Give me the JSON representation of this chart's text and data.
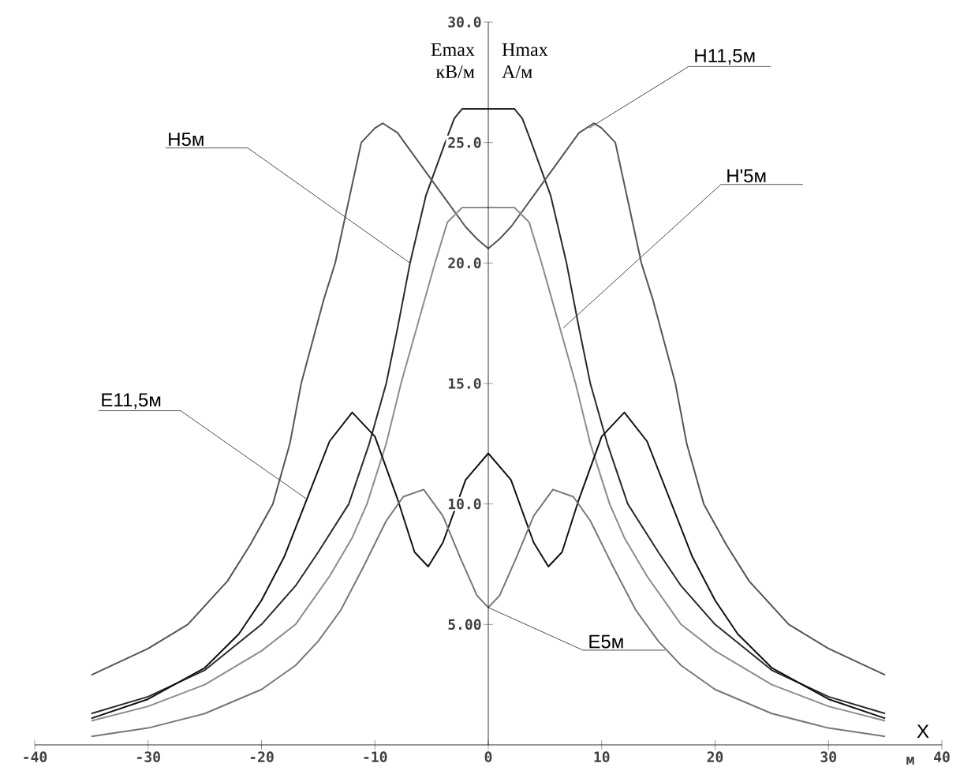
{
  "chart_data": {
    "type": "line",
    "ylabel": "Emax кВ/м",
    "y2label": "Hmax А/м",
    "xlabel": "X",
    "xlim": [
      -40,
      40
    ],
    "ylim": [
      0,
      30
    ],
    "xticks": [
      -40,
      -30,
      -20,
      -10,
      0,
      10,
      20,
      30,
      40
    ],
    "yticks": [
      {
        "value": 5,
        "label": "5.00"
      },
      {
        "value": 10,
        "label": "10.0"
      },
      {
        "value": 15,
        "label": "15.0"
      },
      {
        "value": 20,
        "label": "20.0"
      },
      {
        "value": 25,
        "label": "25.0"
      },
      {
        "value": 30,
        "label": "30.0"
      }
    ],
    "grid": false,
    "marker": "none",
    "line_style": "solid",
    "series": [
      {
        "color": "#2a2a2a",
        "x": [
          -35,
          -30,
          -25,
          -20,
          -17,
          -15,
          -12.3,
          -10.5,
          -9,
          -8,
          -6.9,
          -5.5,
          -3.8,
          -3,
          -2.3,
          0,
          2.3,
          3,
          3.8,
          5.5,
          6.9,
          8,
          9,
          10.5,
          12.3,
          15,
          17,
          20,
          25,
          30,
          35
        ],
        "values": [
          1.3,
          2.0,
          3.1,
          5.0,
          6.6,
          8.0,
          10,
          12.5,
          15,
          17.3,
          20,
          22.8,
          25,
          26,
          26.4,
          26.4,
          26.4,
          26,
          25,
          22.8,
          20,
          17.3,
          15,
          12.5,
          10,
          8.0,
          6.6,
          5.0,
          3.1,
          2.0,
          1.3
        ]
      },
      {
        "color": "#555555",
        "x": [
          -35,
          -30,
          -26.5,
          -23,
          -21,
          -19,
          -17.5,
          -16.5,
          -14.5,
          -13.5,
          -11.2,
          -10,
          -9.3,
          -8,
          -6,
          -4,
          -2,
          -1,
          0,
          1,
          2,
          4,
          6,
          8,
          9.3,
          10,
          11.2,
          13.5,
          14.5,
          16.5,
          17.5,
          19,
          21,
          23,
          26.5,
          30,
          35
        ],
        "values": [
          2.9,
          4.0,
          5.0,
          6.8,
          8.3,
          10,
          12.5,
          15,
          18.5,
          20,
          25,
          25.6,
          25.8,
          25.4,
          24.1,
          22.8,
          21.5,
          21.0,
          20.6,
          21.0,
          21.5,
          22.8,
          24.1,
          25.4,
          25.8,
          25.6,
          25,
          20,
          18.5,
          15,
          12.5,
          10,
          8.3,
          6.8,
          5.0,
          4.0,
          2.9
        ]
      },
      {
        "color": "#8c8c8c",
        "x": [
          -35,
          -30,
          -25,
          -20,
          -17,
          -14,
          -12,
          -10.7,
          -9,
          -7.7,
          -6.2,
          -4.7,
          -3.6,
          -2.3,
          0,
          2.3,
          3.6,
          4.7,
          6.2,
          7.7,
          9,
          10.7,
          12,
          14,
          17,
          20,
          25,
          30,
          35
        ],
        "values": [
          1.0,
          1.6,
          2.5,
          3.9,
          5.0,
          7.0,
          8.6,
          10,
          12.5,
          15,
          17.5,
          20,
          21.7,
          22.3,
          22.3,
          22.3,
          21.7,
          20,
          17.5,
          15,
          12.5,
          10,
          8.6,
          7.0,
          5.0,
          3.9,
          2.5,
          1.6,
          1.0
        ]
      },
      {
        "color": "#111111",
        "x": [
          -35,
          -30,
          -25,
          -22,
          -20,
          -18,
          -16,
          -14,
          -12,
          -10,
          -8,
          -6.5,
          -5.3,
          -4,
          -2,
          0,
          2,
          4,
          5.3,
          6.5,
          8,
          10,
          12,
          14,
          16,
          18,
          20,
          22,
          25,
          30,
          35
        ],
        "values": [
          1.1,
          1.9,
          3.2,
          4.6,
          6.0,
          7.8,
          10.2,
          12.6,
          13.8,
          12.8,
          10.2,
          8.0,
          7.4,
          8.4,
          11.0,
          12.1,
          11.0,
          8.4,
          7.4,
          8.0,
          10.2,
          12.8,
          13.8,
          12.6,
          10.2,
          7.8,
          6.0,
          4.6,
          3.2,
          1.9,
          1.1
        ]
      },
      {
        "color": "#777777",
        "x": [
          -35,
          -30,
          -25,
          -20,
          -17,
          -15,
          -13,
          -11,
          -9,
          -7.5,
          -5.7,
          -4,
          -2.5,
          -1,
          0,
          1,
          2.5,
          4,
          5.7,
          7.5,
          9,
          11,
          13,
          15,
          17,
          20,
          25,
          30,
          35
        ],
        "values": [
          0.35,
          0.7,
          1.3,
          2.3,
          3.3,
          4.3,
          5.6,
          7.4,
          9.3,
          10.3,
          10.6,
          9.5,
          7.8,
          6.2,
          5.7,
          6.2,
          7.8,
          9.5,
          10.6,
          10.3,
          9.3,
          7.4,
          5.6,
          4.3,
          3.3,
          2.3,
          1.3,
          0.7,
          0.35
        ]
      }
    ],
    "annotations": [
      {
        "text": "H5м",
        "x": -6.9,
        "y": 20
      },
      {
        "text": "H11,5м",
        "x": 8.9,
        "y": 25.6
      },
      {
        "text": "H'5м",
        "x": 6.6,
        "y": 17.3
      },
      {
        "text": "E11,5м",
        "x": -16,
        "y": 10.2
      },
      {
        "text": "E5м",
        "x": 0,
        "y": 5.7
      },
      "м"
    ]
  }
}
